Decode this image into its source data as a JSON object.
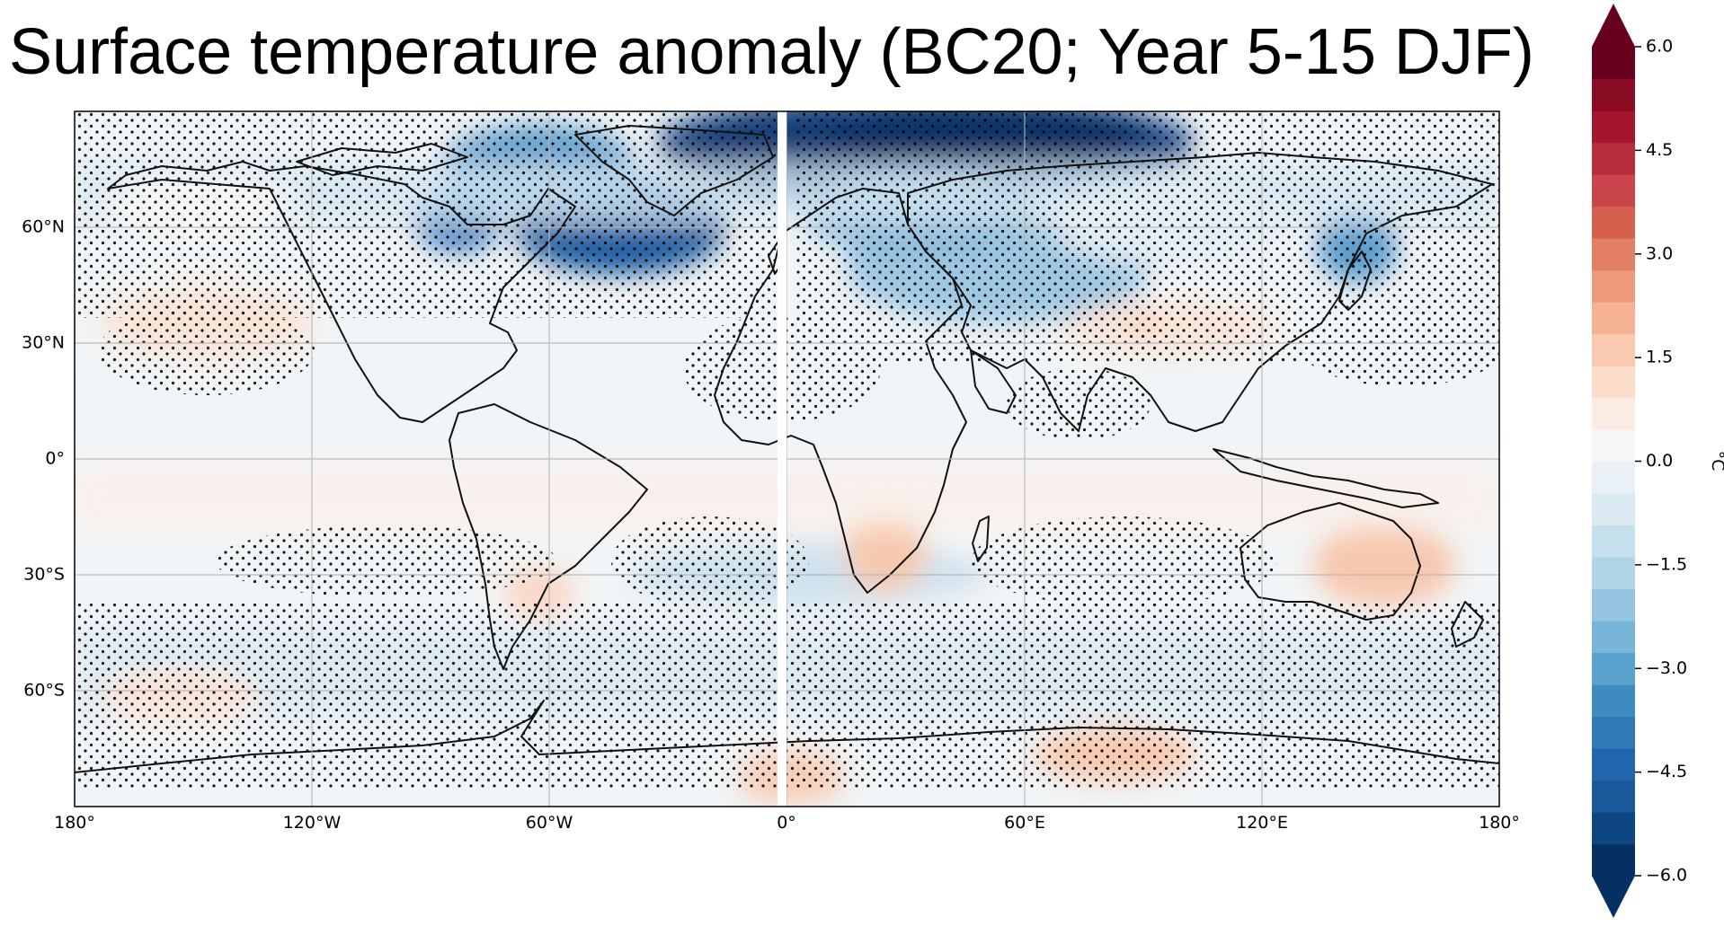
{
  "title": "Surface temperature anomaly (BC20; Year 5-15 DJF)",
  "map": {
    "projection": "PlateCarree",
    "lat_ticks": [
      "60°N",
      "30°N",
      "0°",
      "30°S",
      "60°S"
    ],
    "lon_ticks": [
      "180°",
      "120°W",
      "60°W",
      "0°",
      "60°E",
      "120°E",
      "180°"
    ],
    "stippling": "dots indicate statistical significance",
    "ocean_color": "#f2f5f7",
    "features": [
      {
        "name": "arctic-cold-anomaly",
        "region": "Greenland–Barents–Kara Sea",
        "value_c": -6.0
      },
      {
        "name": "labrador-cold-anomaly",
        "region": "Labrador Sea / Hudson Bay",
        "value_c": -4.0
      },
      {
        "name": "eurasia-cold-anomaly",
        "region": "Central Eurasia",
        "value_c": -1.5
      },
      {
        "name": "okhotsk-cold-anomaly",
        "region": "Sea of Okhotsk",
        "value_c": -2.5
      },
      {
        "name": "australia-warm-anomaly",
        "region": "Australia",
        "value_c": 1.0
      },
      {
        "name": "southern-africa-warm-anomaly",
        "region": "Southern Africa",
        "value_c": 1.0
      },
      {
        "name": "antarctic-warm-anomaly",
        "region": "East Antarctica",
        "value_c": 1.0
      }
    ]
  },
  "colorbar": {
    "unit": "°C",
    "min": -6.0,
    "max": 6.0,
    "ticks": [
      "6.0",
      "4.5",
      "3.0",
      "1.5",
      "0.0",
      "−1.5",
      "−3.0",
      "−4.5",
      "−6.0"
    ],
    "extend": "both",
    "colormap": "RdBu_r",
    "colors": [
      "#053061",
      "#0d4680",
      "#1a5a9b",
      "#2166ac",
      "#2f79b5",
      "#3d8bc0",
      "#5aa1cd",
      "#79b5d8",
      "#95c5e0",
      "#afd3e7",
      "#c6dfed",
      "#dae9f2",
      "#e9f1f6",
      "#f6f6f6",
      "#faebe3",
      "#fbdccb",
      "#f9c9b0",
      "#f5b394",
      "#ee9a7a",
      "#e37f63",
      "#d6604d",
      "#c9454b",
      "#b82d3b",
      "#a5152e",
      "#8a0b24",
      "#67001f"
    ]
  }
}
